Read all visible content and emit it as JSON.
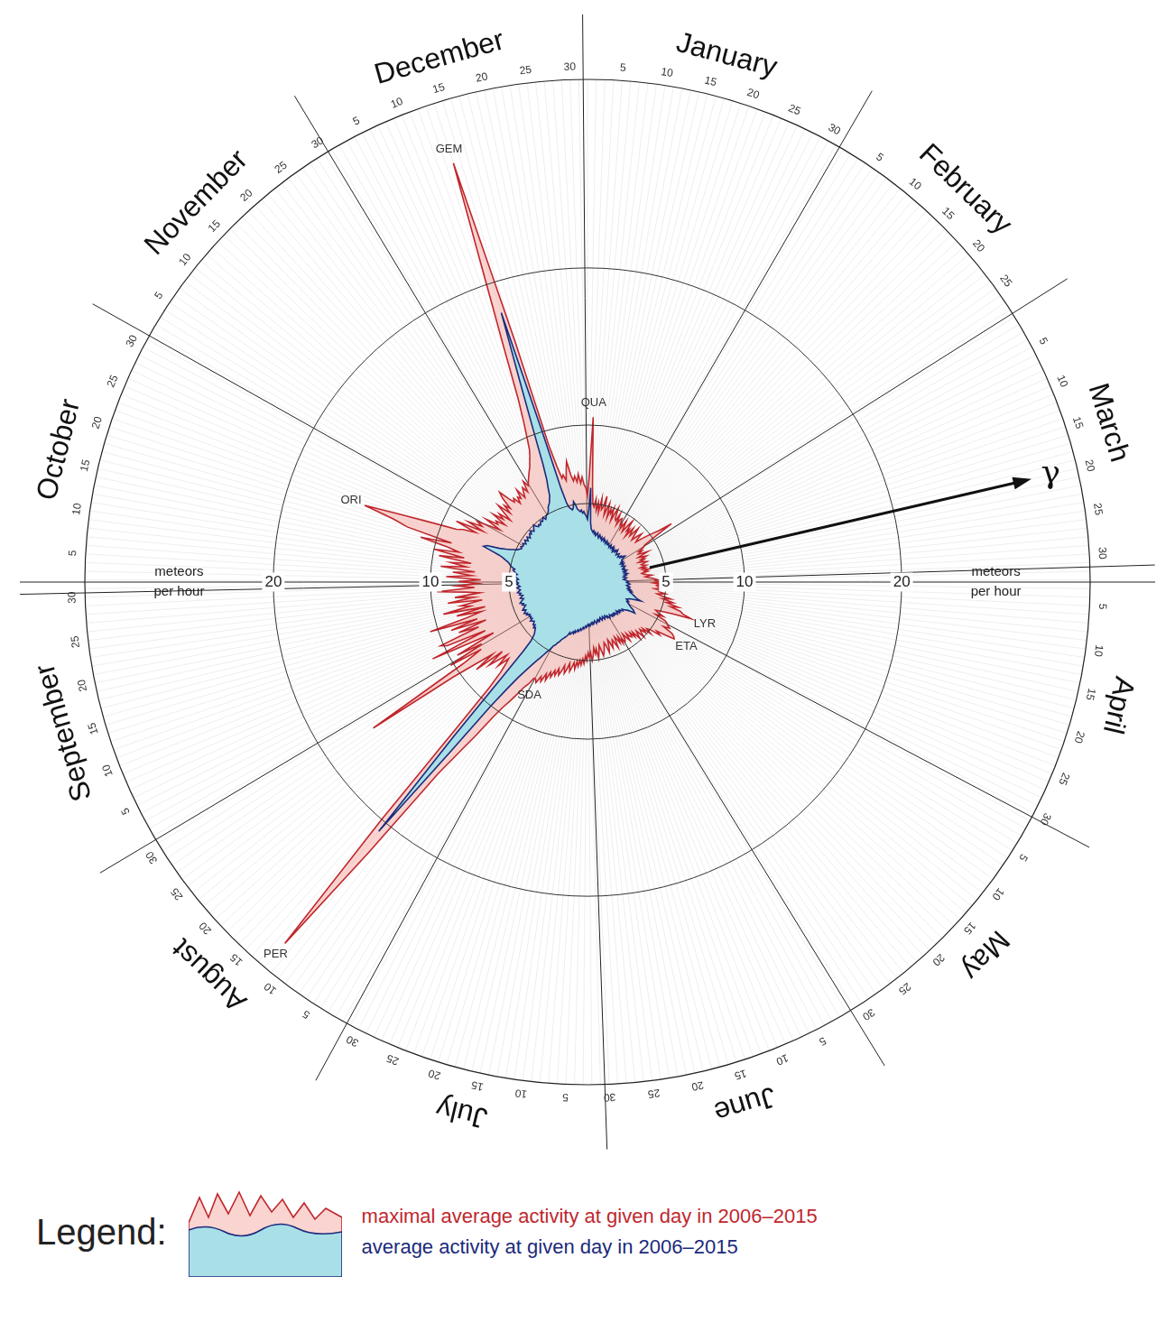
{
  "chart_data": {
    "type": "radar",
    "months": [
      "January",
      "February",
      "March",
      "April",
      "May",
      "June",
      "July",
      "August",
      "September",
      "October",
      "November",
      "December"
    ],
    "categories": [
      null,
      null,
      null,
      null,
      "5",
      null,
      null,
      null,
      null,
      "10",
      null,
      null,
      null,
      null,
      "15",
      null,
      null,
      null,
      null,
      "20",
      null,
      null,
      null,
      null,
      "25",
      null,
      null,
      null,
      null,
      "30",
      null,
      null,
      null,
      null,
      null,
      "5",
      null,
      null,
      null,
      null,
      "10",
      null,
      null,
      null,
      null,
      "15",
      null,
      null,
      null,
      null,
      "20",
      null,
      null,
      null,
      null,
      "25",
      null,
      null,
      null,
      null,
      null,
      null,
      null,
      "5",
      null,
      null,
      null,
      null,
      "10",
      null,
      null,
      null,
      null,
      "15",
      null,
      null,
      null,
      null,
      "20",
      null,
      null,
      null,
      null,
      "25",
      null,
      null,
      null,
      null,
      "30",
      null,
      null,
      null,
      null,
      null,
      "5",
      null,
      null,
      null,
      null,
      "10",
      null,
      null,
      null,
      null,
      "15",
      null,
      null,
      null,
      null,
      "20",
      null,
      null,
      null,
      null,
      "25",
      null,
      null,
      null,
      null,
      "30",
      null,
      null,
      null,
      null,
      "5",
      null,
      null,
      null,
      null,
      "10",
      null,
      null,
      null,
      null,
      "15",
      null,
      null,
      null,
      null,
      "20",
      null,
      null,
      null,
      null,
      "25",
      null,
      null,
      null,
      null,
      "30",
      null,
      null,
      null,
      null,
      null,
      "5",
      null,
      null,
      null,
      null,
      "10",
      null,
      null,
      null,
      null,
      "15",
      null,
      null,
      null,
      null,
      "20",
      null,
      null,
      null,
      null,
      "25",
      null,
      null,
      null,
      null,
      "30",
      null,
      null,
      null,
      null,
      "5",
      null,
      null,
      null,
      null,
      "10",
      null,
      null,
      null,
      null,
      "15",
      null,
      null,
      null,
      null,
      "20",
      null,
      null,
      null,
      null,
      "25",
      null,
      null,
      null,
      null,
      "30",
      null,
      null,
      null,
      null,
      null,
      "5",
      null,
      null,
      null,
      null,
      "10",
      null,
      null,
      null,
      null,
      "15",
      null,
      null,
      null,
      null,
      "20",
      null,
      null,
      null,
      null,
      "25",
      null,
      null,
      null,
      null,
      "30",
      null,
      null,
      null,
      null,
      null,
      "5",
      null,
      null,
      null,
      null,
      "10",
      null,
      null,
      null,
      null,
      "15",
      null,
      null,
      null,
      null,
      "20",
      null,
      null,
      null,
      null,
      "25",
      null,
      null,
      null,
      null,
      "30",
      null,
      null,
      null,
      null,
      "5",
      null,
      null,
      null,
      null,
      "10",
      null,
      null,
      null,
      null,
      "15",
      null,
      null,
      null,
      null,
      "20",
      null,
      null,
      null,
      null,
      "25",
      null,
      null,
      null,
      null,
      "30",
      null,
      null,
      null,
      null,
      null,
      "5",
      null,
      null,
      null,
      null,
      "10",
      null,
      null,
      null,
      null,
      "15",
      null,
      null,
      null,
      null,
      "20",
      null,
      null,
      null,
      null,
      "25",
      null,
      null,
      null,
      null,
      "30",
      null,
      null,
      null,
      null,
      "5",
      null,
      null,
      null,
      null,
      "10",
      null,
      null,
      null,
      null,
      "15",
      null,
      null,
      null,
      null,
      "20",
      null,
      null,
      null,
      null,
      "25",
      null,
      null,
      null,
      null,
      "30",
      null
    ],
    "series": [
      {
        "name": "maximal average activity at given day in 2006–2015",
        "color": "#c0272d",
        "values": [
          5.5,
          6.8,
          10.5,
          6.2,
          5.0,
          4.8,
          5.3,
          4.6,
          5.1,
          4.5,
          5.4,
          4.7,
          4.9,
          5.6,
          4.4,
          4.8,
          5.2,
          4.3,
          4.9,
          4.6,
          5.0,
          4.2,
          4.7,
          5.1,
          4.4,
          4.3,
          4.8,
          4.1,
          4.5,
          4.6,
          4.2,
          4.3,
          4.0,
          4.6,
          4.2,
          3.9,
          4.4,
          4.8,
          4.1,
          4.3,
          3.8,
          4.5,
          4.2,
          4.0,
          4.7,
          4.4,
          4.1,
          3.9,
          4.3,
          4.6,
          4.2,
          4.0,
          4.4,
          4.8,
          5.2,
          5.6,
          6.5,
          5.0,
          4.3,
          4.2,
          3.8,
          4.0,
          3.7,
          3.9,
          4.3,
          3.6,
          3.8,
          4.1,
          3.7,
          3.9,
          3.5,
          3.8,
          4.0,
          3.6,
          3.7,
          3.9,
          3.5,
          3.8,
          3.6,
          4.0,
          3.7,
          3.9,
          3.5,
          3.6,
          3.8,
          4.1,
          3.7,
          3.9,
          4.2,
          4.4,
          4.3,
          4.6,
          4.2,
          4.8,
          4.4,
          4.5,
          4.9,
          4.3,
          4.7,
          4.6,
          5.0,
          4.5,
          4.8,
          5.4,
          4.9,
          5.6,
          5.2,
          6.0,
          5.5,
          6.2,
          6.4,
          7.0,
          5.8,
          5.1,
          4.7,
          4.9,
          5.3,
          4.8,
          5.5,
          5.7,
          5.8,
          6.0,
          5.6,
          6.3,
          6.5,
          6.6,
          6.0,
          5.4,
          5.7,
          5.0,
          4.8,
          5.2,
          4.6,
          4.9,
          4.5,
          4.7,
          5.0,
          4.4,
          4.6,
          4.9,
          4.3,
          4.6,
          4.2,
          4.5,
          4.4,
          4.1,
          4.6,
          4.3,
          4.0,
          4.4,
          4.5,
          4.2,
          4.5,
          4.0,
          4.4,
          4.1,
          3.9,
          4.6,
          4.3,
          4.0,
          4.2,
          4.5,
          4.1,
          3.9,
          4.4,
          4.7,
          4.2,
          4.0,
          4.3,
          4.6,
          4.8,
          4.4,
          4.1,
          4.5,
          4.9,
          4.3,
          4.6,
          4.2,
          4.7,
          5.0,
          4.5,
          4.8,
          4.5,
          5.0,
          4.7,
          5.2,
          4.9,
          5.3,
          5.0,
          5.4,
          5.1,
          5.6,
          5.2,
          5.5,
          5.8,
          5.3,
          5.7,
          6.0,
          5.5,
          5.9,
          6.2,
          5.8,
          6.3,
          6.0,
          6.5,
          6.2,
          6.8,
          6.4,
          7.0,
          6.7,
          7.2,
          7.0,
          7.0,
          7.5,
          7.8,
          8.4,
          9.0,
          9.6,
          10.5,
          12.0,
          13.5,
          15.5,
          22.0,
          30.0,
          20.0,
          12.5,
          9.2,
          8.0,
          7.4,
          7.0,
          7.8,
          6.9,
          7.5,
          8.2,
          7.0,
          9.0,
          7.6,
          8.8,
          10.5,
          16.5,
          9.5,
          8.0,
          10.2,
          7.8,
          9.5,
          6.8,
          8.5,
          11.0,
          7.2,
          9.8,
          10.2,
          7.5,
          8.8,
          6.9,
          9.2,
          7.4,
          10.5,
          8.0,
          7.0,
          8.6,
          6.7,
          9.4,
          7.6,
          8.2,
          6.8,
          9.0,
          7.3,
          8.5,
          6.9,
          7.8,
          9.6,
          7.2,
          8.3,
          7.0,
          8.2,
          6.8,
          9.0,
          7.4,
          8.6,
          7.2,
          9.4,
          7.8,
          8.8,
          7.5,
          9.6,
          8.0,
          10.0,
          8.4,
          9.2,
          11.0,
          9.0,
          12.0,
          13.0,
          15.0,
          12.5,
          10.5,
          9.0,
          8.6,
          7.8,
          9.2,
          7.4,
          8.5,
          7.6,
          8.0,
          7.2,
          6.5,
          7.6,
          6.8,
          7.0,
          6.4,
          7.4,
          6.7,
          7.1,
          6.3,
          6.9,
          7.5,
          6.6,
          7.2,
          6.8,
          7.6,
          8.0,
          7.3,
          6.9,
          7.1,
          6.6,
          7.0,
          6.8,
          7.4,
          6.7,
          7.0,
          7.3,
          6.9,
          7.6,
          7.2,
          7.4,
          7.6,
          7.8,
          8.0,
          8.2,
          8.5,
          8.8,
          9.2,
          10.0,
          11.0,
          12.5,
          15.5,
          20.0,
          28.0,
          16.0,
          9.0,
          7.6,
          6.8,
          7.0,
          6.6,
          7.2,
          7.8,
          6.9,
          6.5,
          6.8,
          6.4,
          6.9,
          6.3,
          6.7,
          6.2,
          6.0
        ]
      },
      {
        "name": "average activity at given day in 2006–2015",
        "color": "#1b2a7b",
        "values": [
          4.0,
          4.6,
          6.0,
          3.8,
          3.4,
          3.3,
          3.2,
          3.3,
          3.1,
          3.2,
          3.0,
          3.1,
          3.2,
          3.0,
          2.9,
          3.1,
          3.0,
          2.9,
          3.0,
          2.8,
          2.9,
          3.0,
          2.8,
          2.9,
          2.8,
          2.7,
          2.9,
          2.8,
          2.7,
          2.8,
          2.7,
          2.7,
          2.6,
          2.8,
          2.7,
          2.6,
          2.7,
          2.8,
          2.6,
          2.7,
          2.5,
          2.6,
          2.7,
          2.6,
          2.8,
          2.7,
          2.6,
          2.5,
          2.6,
          2.7,
          2.6,
          2.5,
          2.6,
          2.7,
          2.6,
          2.8,
          2.9,
          2.7,
          2.6,
          2.6,
          2.5,
          2.6,
          2.4,
          2.5,
          2.6,
          2.5,
          2.4,
          2.5,
          2.6,
          2.5,
          2.4,
          2.5,
          2.4,
          2.5,
          2.6,
          2.4,
          2.5,
          2.4,
          2.5,
          2.6,
          2.4,
          2.5,
          2.4,
          2.3,
          2.4,
          2.5,
          2.4,
          2.3,
          2.4,
          2.5,
          2.5,
          2.6,
          2.5,
          2.6,
          2.7,
          2.6,
          2.5,
          2.6,
          2.7,
          2.6,
          2.7,
          2.6,
          2.8,
          2.7,
          2.9,
          2.8,
          2.9,
          3.0,
          3.1,
          3.2,
          3.3,
          3.6,
          3.2,
          2.9,
          2.8,
          2.7,
          2.8,
          2.9,
          2.8,
          2.9,
          3.0,
          3.1,
          3.2,
          3.4,
          3.5,
          3.6,
          3.3,
          3.1,
          3.0,
          2.9,
          2.8,
          2.9,
          2.8,
          2.7,
          2.8,
          2.7,
          2.8,
          2.6,
          2.7,
          2.8,
          2.7,
          2.6,
          2.7,
          2.6,
          2.7,
          2.6,
          2.7,
          2.6,
          2.5,
          2.6,
          2.7,
          2.6,
          2.5,
          2.6,
          2.5,
          2.4,
          2.5,
          2.6,
          2.5,
          2.4,
          2.5,
          2.6,
          2.5,
          2.4,
          2.5,
          2.6,
          2.5,
          2.6,
          2.5,
          2.6,
          2.7,
          2.6,
          2.5,
          2.6,
          2.7,
          2.6,
          2.7,
          2.6,
          2.7,
          2.8,
          2.7,
          2.8,
          2.7,
          2.8,
          2.9,
          2.8,
          2.9,
          3.0,
          2.9,
          3.0,
          3.1,
          3.0,
          3.1,
          3.2,
          3.1,
          3.2,
          3.3,
          3.2,
          3.4,
          3.3,
          3.4,
          3.5,
          3.4,
          3.6,
          3.7,
          3.8,
          3.9,
          4.0,
          4.2,
          4.3,
          4.5,
          4.6,
          4.9,
          5.1,
          5.4,
          5.7,
          6.0,
          6.4,
          6.9,
          7.5,
          8.5,
          10.0,
          14.0,
          20.7,
          13.0,
          8.0,
          6.0,
          5.2,
          4.9,
          4.7,
          4.6,
          4.5,
          4.4,
          4.5,
          4.3,
          4.4,
          4.3,
          4.2,
          4.3,
          4.4,
          4.2,
          4.3,
          4.2,
          4.3,
          4.2,
          4.4,
          4.3,
          4.5,
          4.4,
          4.3,
          4.5,
          4.4,
          4.3,
          4.2,
          4.4,
          4.3,
          4.5,
          4.4,
          4.3,
          4.2,
          4.4,
          4.3,
          4.2,
          4.4,
          4.3,
          4.5,
          4.4,
          4.3,
          4.4,
          4.5,
          4.3,
          4.4,
          4.5,
          4.4,
          4.5,
          4.6,
          4.4,
          4.5,
          4.6,
          4.7,
          4.5,
          4.6,
          4.7,
          4.8,
          4.7,
          4.9,
          5.0,
          5.1,
          5.2,
          5.4,
          5.6,
          5.9,
          6.4,
          7.0,
          6.8,
          6.0,
          5.6,
          5.3,
          5.1,
          4.9,
          4.8,
          4.7,
          4.8,
          4.7,
          4.7,
          4.8,
          4.6,
          4.7,
          4.8,
          4.6,
          4.7,
          4.8,
          4.6,
          4.7,
          4.8,
          4.7,
          4.9,
          4.8,
          4.7,
          4.8,
          4.9,
          5.0,
          4.8,
          4.7,
          4.8,
          4.7,
          4.8,
          4.9,
          4.8,
          4.9,
          5.0,
          4.8,
          4.9,
          5.0,
          5.0,
          5.1,
          5.2,
          5.4,
          5.5,
          5.6,
          5.8,
          6.0,
          6.5,
          7.0,
          8.0,
          10.0,
          13.0,
          18.0,
          10.0,
          6.2,
          5.2,
          4.9,
          4.8,
          4.7,
          4.8,
          5.2,
          5.0,
          4.7,
          4.6,
          4.5,
          4.6,
          4.4,
          4.5,
          4.3,
          4.2
        ]
      }
    ],
    "ylim": [
      0,
      32
    ],
    "yticks": [
      5,
      10,
      20
    ],
    "y_label": "meteors per hour",
    "grid": true,
    "legend": "bottom",
    "legend_title": "Legend:",
    "annotations": [
      {
        "text": "GEM",
        "x": 347
      },
      {
        "text": "QUA",
        "x": 2
      },
      {
        "text": "ORI",
        "x": 293
      },
      {
        "text": "LYR",
        "x": 111
      },
      {
        "text": "ETA",
        "x": 125
      },
      {
        "text": "PER",
        "x": 223
      },
      {
        "text": "SDA",
        "x": 210
      },
      {
        "text": "γ",
        "x": 78,
        "marker": "arrow"
      }
    ]
  }
}
